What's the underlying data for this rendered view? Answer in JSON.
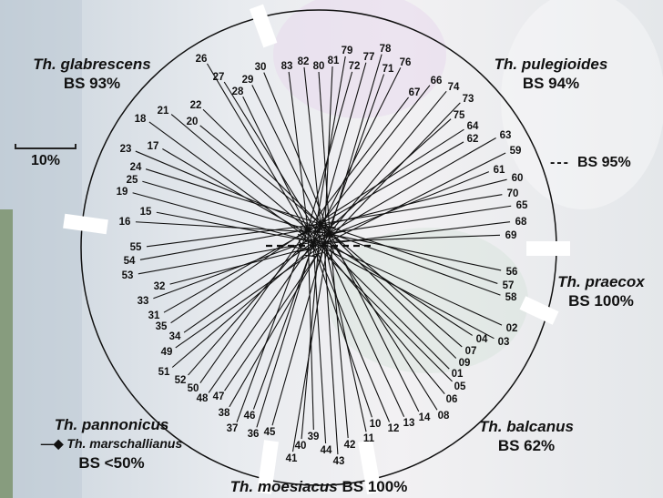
{
  "scale_label": "10%",
  "legend_bs95": "BS 95%",
  "groups": {
    "glabrescens": {
      "name": "Th. glabrescens",
      "bs": "BS 93%"
    },
    "pulegioides": {
      "name": "Th. pulegioides",
      "bs": "BS 94%"
    },
    "praecox": {
      "name": "Th. praecox",
      "bs": "BS 100%"
    },
    "balcanus": {
      "name": "Th. balcanus",
      "bs": "BS 62%"
    },
    "moesiacus": {
      "name": "Th. moesiacus",
      "bs": "BS 100%"
    },
    "pannonicus": {
      "name": "Th. pannonicus",
      "sub": "Th. marschallianus",
      "bs": "BS <50%"
    }
  },
  "leaves": [
    "83",
    "82",
    "80",
    "81",
    "79",
    "72",
    "77",
    "78",
    "71",
    "76",
    "67",
    "66",
    "74",
    "73",
    "75",
    "64",
    "62",
    "63",
    "59",
    "61",
    "60",
    "70",
    "65",
    "68",
    "69",
    "56",
    "57",
    "58",
    "02",
    "03",
    "04",
    "07",
    "09",
    "01",
    "05",
    "06",
    "08",
    "14",
    "13",
    "12",
    "10",
    "11",
    "42",
    "43",
    "44",
    "39",
    "40",
    "41",
    "45",
    "36",
    "37",
    "46",
    "38",
    "47",
    "48",
    "50",
    "52",
    "51",
    "49",
    "34",
    "35",
    "31",
    "33",
    "32",
    "53",
    "54",
    "55",
    "16",
    "15",
    "19",
    "25",
    "24",
    "23",
    "17",
    "18",
    "21",
    "20",
    "22",
    "27",
    "26",
    "28",
    "29",
    "30"
  ]
}
